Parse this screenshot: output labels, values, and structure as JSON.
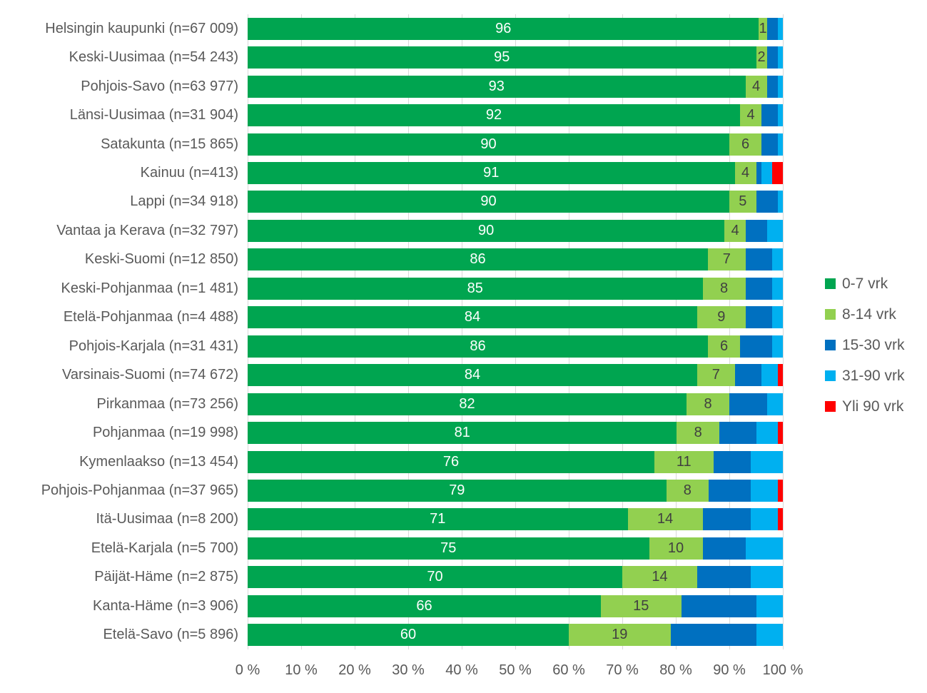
{
  "chart_data": {
    "type": "bar",
    "orientation": "horizontal",
    "stacked": true,
    "title": "",
    "xlabel": "",
    "ylabel": "",
    "grid": true,
    "legend_position": "right",
    "categories": [
      "Helsingin kaupunki (n=67 009)",
      "Keski-Uusimaa (n=54 243)",
      "Pohjois-Savo (n=63 977)",
      "Länsi-Uusimaa (n=31 904)",
      "Satakunta (n=15 865)",
      "Kainuu (n=413)",
      "Lappi (n=34 918)",
      "Vantaa ja Kerava (n=32 797)",
      "Keski-Suomi (n=12 850)",
      "Keski-Pohjanmaa (n=1 481)",
      "Etelä-Pohjanmaa (n=4 488)",
      "Pohjois-Karjala (n=31 431)",
      "Varsinais-Suomi (n=74 672)",
      "Pirkanmaa (n=73 256)",
      "Pohjanmaa (n=19 998)",
      "Kymenlaakso (n=13 454)",
      "Pohjois-Pohjanmaa (n=37 965)",
      "Itä-Uusimaa (n=8 200)",
      "Etelä-Karjala (n=5 700)",
      "Päijät-Häme (n=2 875)",
      "Kanta-Häme (n=3 906)",
      "Etelä-Savo (n=5 896)"
    ],
    "series": [
      {
        "name": "0-7 vrk",
        "color": "#00A550",
        "show_labels": true,
        "label_color": "#FFFFFF",
        "values": [
          96,
          95,
          93,
          92,
          90,
          91,
          90,
          90,
          86,
          85,
          84,
          86,
          84,
          82,
          81,
          76,
          79,
          71,
          75,
          70,
          66,
          60
        ]
      },
      {
        "name": "8-14 vrk",
        "color": "#92D050",
        "show_labels": true,
        "label_color": "#404040",
        "values": [
          1,
          2,
          4,
          4,
          6,
          4,
          5,
          4,
          7,
          8,
          9,
          6,
          7,
          8,
          8,
          11,
          8,
          14,
          10,
          14,
          15,
          19
        ]
      },
      {
        "name": "15-30 vrk",
        "color": "#0070C0",
        "show_labels": false,
        "label_color": "#FFFFFF",
        "values": [
          2,
          2,
          2,
          3,
          3,
          1,
          4,
          4,
          5,
          5,
          5,
          6,
          5,
          7,
          7,
          7,
          8,
          9,
          8,
          10,
          14,
          16
        ]
      },
      {
        "name": "31-90 vrk",
        "color": "#00B0F0",
        "show_labels": false,
        "label_color": "#FFFFFF",
        "values": [
          1,
          1,
          1,
          1,
          1,
          2,
          1,
          3,
          2,
          2,
          2,
          2,
          3,
          3,
          4,
          6,
          5,
          5,
          7,
          6,
          5,
          5
        ]
      },
      {
        "name": "Yli 90 vrk",
        "color": "#FF0000",
        "show_labels": false,
        "label_color": "#FFFFFF",
        "values": [
          0,
          0,
          0,
          0,
          0,
          2,
          0,
          0,
          0,
          0,
          0,
          0,
          1,
          0,
          1,
          0,
          1,
          1,
          0,
          0,
          0,
          0
        ]
      }
    ],
    "x_axis": {
      "min": 0,
      "max": 100,
      "step": 10,
      "tick_labels": [
        "0 %",
        "10 %",
        "20 %",
        "30 %",
        "40 %",
        "50 %",
        "60 %",
        "70 %",
        "80 %",
        "90 %",
        "100 %"
      ]
    }
  },
  "styles": {
    "background": "#FFFFFF",
    "text_color": "#595959",
    "gridline_color": "#D9D9D9"
  }
}
